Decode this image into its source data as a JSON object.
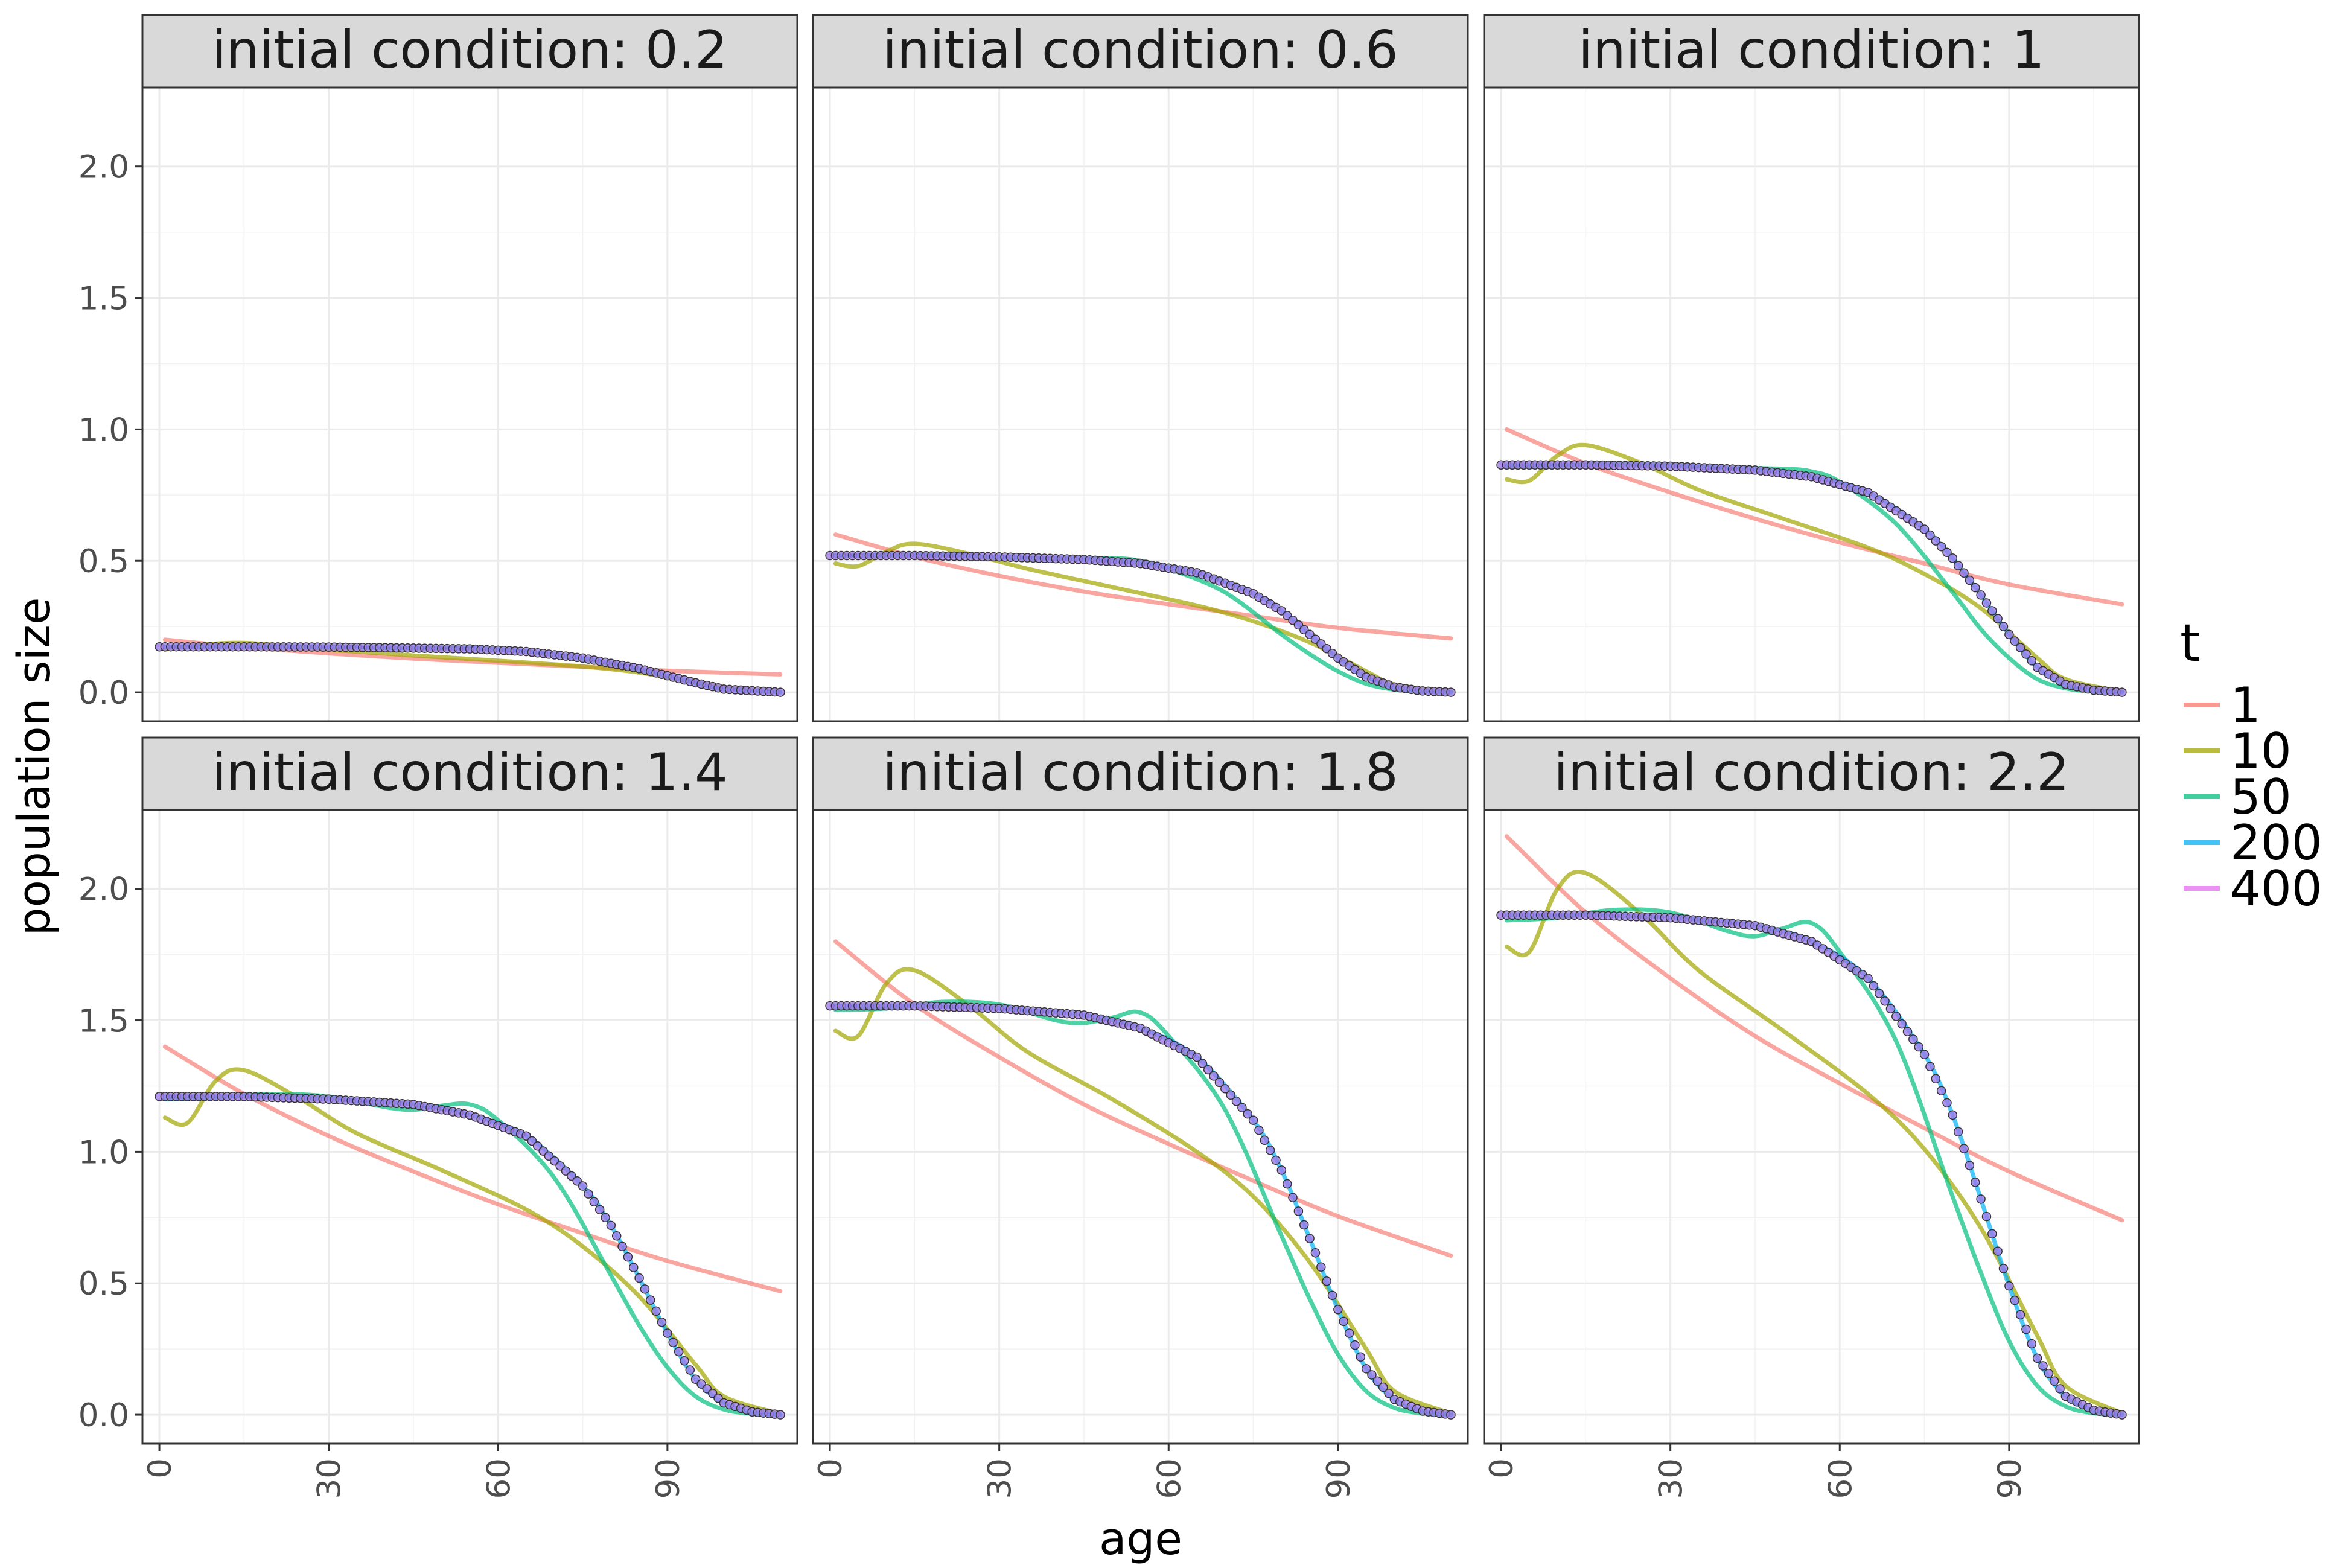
{
  "chart_data": {
    "type": "line",
    "xlabel": "age",
    "ylabel": "population size",
    "x_ticks": [
      "0",
      "30",
      "60",
      "90"
    ],
    "y_ticks": [
      "0.0",
      "0.5",
      "1.0",
      "1.5",
      "2.0"
    ],
    "xlim": [
      -3,
      113
    ],
    "ylim": [
      -0.11,
      2.3
    ],
    "grid": true,
    "legend": {
      "title": "t",
      "position": "right",
      "entries": [
        "1",
        "10",
        "50",
        "200",
        "400"
      ]
    },
    "colors": {
      "1": "#F8766D",
      "10": "#A3A500",
      "50": "#00BF7D",
      "200": "#00B0F6",
      "400": "#E76BF3",
      "points_fill": "#9E7BE8",
      "points_stroke": "#333333",
      "strip_fill": "#D9D9D9",
      "panel_border": "#333333",
      "grid": "#EBEBEB"
    },
    "series_note_points": "t = 400 shown as circles at every age 0–110",
    "panels": [
      {
        "label": "initial condition: 0.2",
        "series": [
          {
            "name": "1",
            "x": [
              1,
              15,
              30,
              45,
              60,
              75,
              90,
              110
            ],
            "y": [
              0.2,
              0.172,
              0.148,
              0.128,
              0.112,
              0.097,
              0.082,
              0.068
            ]
          },
          {
            "name": "10",
            "x": [
              1,
              5,
              15,
              30,
              45,
              60,
              75,
              85,
              95,
              100,
              110
            ],
            "y": [
              0.162,
              0.175,
              0.188,
              0.162,
              0.14,
              0.12,
              0.098,
              0.075,
              0.038,
              0.02,
              0.002
            ]
          },
          {
            "name": "50",
            "x": [
              1,
              15,
              30,
              45,
              55,
              65,
              75,
              85,
              95,
              100,
              110
            ],
            "y": [
              0.173,
              0.175,
              0.172,
              0.168,
              0.17,
              0.155,
              0.125,
              0.085,
              0.035,
              0.012,
              0.0
            ]
          },
          {
            "name": "200",
            "x": [
              1,
              15,
              30,
              45,
              55,
              65,
              75,
              85,
              95,
              100,
              110
            ],
            "y": [
              0.173,
              0.173,
              0.172,
              0.168,
              0.165,
              0.155,
              0.13,
              0.09,
              0.036,
              0.012,
              0.0
            ]
          },
          {
            "name": "400",
            "x": [
              1,
              15,
              30,
              45,
              55,
              65,
              75,
              85,
              95,
              100,
              110
            ],
            "y": [
              0.173,
              0.173,
              0.172,
              0.168,
              0.165,
              0.155,
              0.13,
              0.09,
              0.036,
              0.012,
              0.0
            ]
          }
        ]
      },
      {
        "label": "initial condition: 0.6",
        "series": [
          {
            "name": "1",
            "x": [
              1,
              15,
              30,
              45,
              60,
              75,
              90,
              110
            ],
            "y": [
              0.6,
              0.515,
              0.443,
              0.383,
              0.335,
              0.29,
              0.245,
              0.205
            ]
          },
          {
            "name": "10",
            "x": [
              1,
              5,
              10,
              15,
              25,
              35,
              50,
              65,
              75,
              85,
              95,
              100,
              110
            ],
            "y": [
              0.49,
              0.48,
              0.535,
              0.565,
              0.525,
              0.47,
              0.4,
              0.33,
              0.27,
              0.19,
              0.08,
              0.03,
              0.002
            ]
          },
          {
            "name": "50",
            "x": [
              1,
              10,
              20,
              30,
              40,
              50,
              55,
              60,
              70,
              80,
              85,
              90,
              95,
              100,
              105,
              110
            ],
            "y": [
              0.52,
              0.522,
              0.525,
              0.512,
              0.508,
              0.51,
              0.5,
              0.47,
              0.38,
              0.22,
              0.145,
              0.08,
              0.032,
              0.01,
              0.002,
              0.0
            ]
          },
          {
            "name": "200",
            "x": [
              1,
              15,
              30,
              45,
              55,
              65,
              75,
              80,
              85,
              90,
              95,
              100,
              105,
              110
            ],
            "y": [
              0.52,
              0.52,
              0.515,
              0.505,
              0.49,
              0.455,
              0.375,
              0.31,
              0.22,
              0.13,
              0.058,
              0.02,
              0.005,
              0.0
            ]
          },
          {
            "name": "400",
            "x": [
              1,
              15,
              30,
              45,
              55,
              65,
              75,
              80,
              85,
              90,
              95,
              100,
              105,
              110
            ],
            "y": [
              0.52,
              0.52,
              0.515,
              0.505,
              0.49,
              0.455,
              0.375,
              0.31,
              0.22,
              0.13,
              0.058,
              0.02,
              0.005,
              0.0
            ]
          }
        ]
      },
      {
        "label": "initial condition: 1",
        "series": [
          {
            "name": "1",
            "x": [
              1,
              15,
              30,
              45,
              60,
              75,
              90,
              110
            ],
            "y": [
              1.0,
              0.87,
              0.76,
              0.66,
              0.57,
              0.49,
              0.41,
              0.335
            ]
          },
          {
            "name": "10",
            "x": [
              1,
              5,
              10,
              15,
              25,
              35,
              50,
              65,
              75,
              85,
              95,
              100,
              110
            ],
            "y": [
              0.81,
              0.805,
              0.9,
              0.94,
              0.87,
              0.77,
              0.66,
              0.55,
              0.45,
              0.32,
              0.13,
              0.05,
              0.003
            ]
          },
          {
            "name": "50",
            "x": [
              1,
              10,
              20,
              30,
              40,
              50,
              55,
              60,
              70,
              80,
              85,
              90,
              95,
              100,
              105,
              110
            ],
            "y": [
              0.86,
              0.862,
              0.87,
              0.865,
              0.855,
              0.85,
              0.84,
              0.8,
              0.64,
              0.38,
              0.24,
              0.13,
              0.05,
              0.015,
              0.003,
              0.0
            ]
          },
          {
            "name": "200",
            "x": [
              1,
              15,
              30,
              45,
              55,
              65,
              75,
              80,
              85,
              90,
              95,
              100,
              105,
              110
            ],
            "y": [
              0.865,
              0.865,
              0.86,
              0.845,
              0.82,
              0.76,
              0.62,
              0.51,
              0.37,
              0.22,
              0.095,
              0.03,
              0.008,
              0.0
            ]
          },
          {
            "name": "400",
            "x": [
              1,
              15,
              30,
              45,
              55,
              65,
              75,
              80,
              85,
              90,
              95,
              100,
              105,
              110
            ],
            "y": [
              0.865,
              0.865,
              0.86,
              0.845,
              0.82,
              0.76,
              0.62,
              0.51,
              0.37,
              0.22,
              0.095,
              0.03,
              0.008,
              0.0
            ]
          }
        ]
      },
      {
        "label": "initial condition: 1.4",
        "series": [
          {
            "name": "1",
            "x": [
              1,
              15,
              30,
              45,
              60,
              75,
              90,
              110
            ],
            "y": [
              1.4,
              1.22,
              1.06,
              0.925,
              0.8,
              0.69,
              0.585,
              0.47
            ]
          },
          {
            "name": "10",
            "x": [
              1,
              5,
              10,
              15,
              25,
              35,
              50,
              65,
              75,
              85,
              95,
              100,
              110
            ],
            "y": [
              1.13,
              1.11,
              1.27,
              1.31,
              1.2,
              1.07,
              0.93,
              0.78,
              0.64,
              0.45,
              0.19,
              0.07,
              0.004
            ]
          },
          {
            "name": "50",
            "x": [
              1,
              10,
              20,
              30,
              40,
              45,
              50,
              55,
              60,
              70,
              80,
              85,
              90,
              95,
              100,
              105,
              110
            ],
            "y": [
              1.2,
              1.205,
              1.22,
              1.21,
              1.17,
              1.16,
              1.175,
              1.18,
              1.12,
              0.9,
              0.53,
              0.34,
              0.18,
              0.07,
              0.02,
              0.004,
              0.0
            ]
          },
          {
            "name": "200",
            "x": [
              1,
              15,
              30,
              45,
              55,
              65,
              75,
              80,
              85,
              90,
              95,
              100,
              105,
              110
            ],
            "y": [
              1.21,
              1.21,
              1.2,
              1.18,
              1.14,
              1.06,
              0.87,
              0.72,
              0.52,
              0.31,
              0.135,
              0.045,
              0.011,
              0.0
            ]
          },
          {
            "name": "400",
            "x": [
              1,
              15,
              30,
              45,
              55,
              65,
              75,
              80,
              85,
              90,
              95,
              100,
              105,
              110
            ],
            "y": [
              1.21,
              1.21,
              1.2,
              1.18,
              1.14,
              1.06,
              0.87,
              0.72,
              0.52,
              0.31,
              0.135,
              0.045,
              0.011,
              0.0
            ]
          }
        ]
      },
      {
        "label": "initial condition: 1.8",
        "series": [
          {
            "name": "1",
            "x": [
              1,
              15,
              30,
              45,
              60,
              75,
              90,
              110
            ],
            "y": [
              1.8,
              1.56,
              1.36,
              1.18,
              1.03,
              0.89,
              0.755,
              0.605
            ]
          },
          {
            "name": "10",
            "x": [
              1,
              5,
              10,
              15,
              25,
              35,
              50,
              65,
              75,
              85,
              95,
              100,
              110
            ],
            "y": [
              1.46,
              1.44,
              1.64,
              1.69,
              1.55,
              1.38,
              1.2,
              1.0,
              0.83,
              0.58,
              0.25,
              0.09,
              0.005
            ]
          },
          {
            "name": "50",
            "x": [
              1,
              10,
              20,
              30,
              40,
              45,
              50,
              55,
              60,
              70,
              80,
              85,
              90,
              95,
              100,
              105,
              110
            ],
            "y": [
              1.54,
              1.545,
              1.57,
              1.56,
              1.5,
              1.49,
              1.51,
              1.53,
              1.44,
              1.16,
              0.68,
              0.44,
              0.23,
              0.09,
              0.026,
              0.005,
              0.0
            ]
          },
          {
            "name": "200",
            "x": [
              1,
              15,
              30,
              45,
              55,
              65,
              75,
              80,
              85,
              90,
              95,
              100,
              105,
              110
            ],
            "y": [
              1.555,
              1.555,
              1.545,
              1.52,
              1.47,
              1.36,
              1.12,
              0.93,
              0.67,
              0.4,
              0.175,
              0.058,
              0.014,
              0.0
            ]
          },
          {
            "name": "400",
            "x": [
              1,
              15,
              30,
              45,
              55,
              65,
              75,
              80,
              85,
              90,
              95,
              100,
              105,
              110
            ],
            "y": [
              1.555,
              1.555,
              1.545,
              1.52,
              1.47,
              1.36,
              1.12,
              0.93,
              0.67,
              0.4,
              0.175,
              0.058,
              0.014,
              0.0
            ]
          }
        ]
      },
      {
        "label": "initial condition: 2.2",
        "series": [
          {
            "name": "1",
            "x": [
              1,
              15,
              30,
              45,
              60,
              75,
              90,
              110
            ],
            "y": [
              2.2,
              1.91,
              1.66,
              1.44,
              1.26,
              1.09,
              0.925,
              0.74
            ]
          },
          {
            "name": "10",
            "x": [
              1,
              5,
              10,
              15,
              25,
              35,
              50,
              65,
              75,
              85,
              95,
              100,
              110
            ],
            "y": [
              1.78,
              1.76,
              2.0,
              2.06,
              1.9,
              1.69,
              1.46,
              1.22,
              1.01,
              0.71,
              0.3,
              0.11,
              0.006
            ]
          },
          {
            "name": "50",
            "x": [
              1,
              10,
              20,
              30,
              40,
              45,
              50,
              55,
              60,
              70,
              80,
              85,
              90,
              95,
              100,
              105,
              110
            ],
            "y": [
              1.88,
              1.89,
              1.92,
              1.91,
              1.84,
              1.82,
              1.85,
              1.87,
              1.76,
              1.42,
              0.83,
              0.54,
              0.28,
              0.11,
              0.032,
              0.006,
              0.0
            ]
          },
          {
            "name": "200",
            "x": [
              1,
              15,
              30,
              45,
              55,
              65,
              75,
              80,
              85,
              90,
              95,
              100,
              105,
              110
            ],
            "y": [
              1.9,
              1.9,
              1.89,
              1.86,
              1.8,
              1.66,
              1.37,
              1.14,
              0.82,
              0.49,
              0.215,
              0.07,
              0.017,
              0.0
            ]
          },
          {
            "name": "400",
            "x": [
              1,
              15,
              30,
              45,
              55,
              65,
              75,
              80,
              85,
              90,
              95,
              100,
              105,
              110
            ],
            "y": [
              1.9,
              1.9,
              1.89,
              1.86,
              1.8,
              1.66,
              1.37,
              1.14,
              0.82,
              0.49,
              0.215,
              0.07,
              0.017,
              0.0
            ]
          }
        ]
      }
    ]
  }
}
